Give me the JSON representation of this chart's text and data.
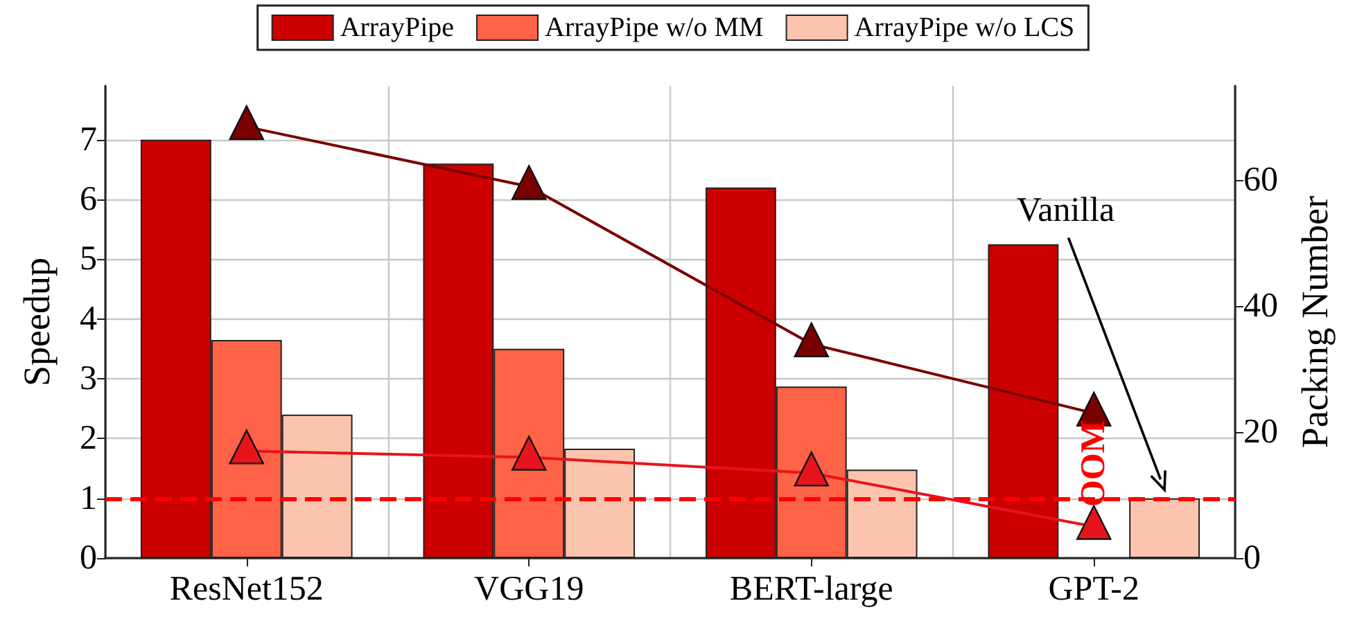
{
  "chart_data": {
    "type": "bar",
    "categories": [
      "ResNet152",
      "VGG19",
      "BERT-large",
      "GPT-2"
    ],
    "ylabel": "Speedup",
    "y2label": "Packing Number",
    "ylim": [
      0,
      7.9
    ],
    "yticks": [
      0,
      1,
      2,
      3,
      4,
      5,
      6,
      7
    ],
    "y2lim": [
      0,
      75
    ],
    "y2ticks": [
      0,
      20,
      40,
      60
    ],
    "series": [
      {
        "name": "ArrayPipe",
        "color": "#cc0000",
        "values": [
          7.0,
          6.6,
          6.2,
          5.25
        ]
      },
      {
        "name": "ArrayPipe w/o MM",
        "color": "#ff6347",
        "values": [
          3.65,
          3.5,
          2.87,
          null
        ]
      },
      {
        "name": "ArrayPipe w/o LCS",
        "color": "#fcc4ae",
        "values": [
          2.4,
          1.83,
          1.48,
          1.0
        ]
      },
      {
        "type": "line",
        "axis": "y2",
        "color": "#7a0000",
        "values": [
          68.5,
          59,
          34,
          23
        ]
      },
      {
        "type": "line",
        "axis": "y2",
        "color": "#e8141c",
        "values": [
          17,
          16,
          13.5,
          5
        ]
      }
    ],
    "ref_lines": [
      {
        "axis": "y",
        "value": 1,
        "color": "#ff0000",
        "line_style": "dashed"
      }
    ],
    "annotations": [
      "Vanilla",
      "OOM"
    ],
    "marker": "triangle",
    "line_style": "solid",
    "grid": true,
    "legend": "top"
  }
}
